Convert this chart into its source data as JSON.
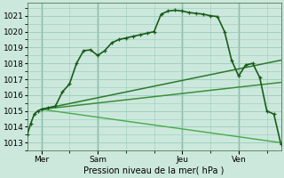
{
  "bg_color": "#cce8dc",
  "grid_color": "#99ccbb",
  "ylabel": "Pression niveau de la mer( hPa )",
  "ylim": [
    1012.5,
    1021.8
  ],
  "yticks": [
    1013,
    1014,
    1015,
    1016,
    1017,
    1018,
    1019,
    1020,
    1021
  ],
  "xlim": [
    0,
    72
  ],
  "day_positions": [
    4,
    20,
    44,
    60
  ],
  "day_labels": [
    "Mer",
    "Sam",
    "Jeu",
    "Ven"
  ],
  "vlines": [
    4,
    20,
    44,
    60
  ],
  "main_line": {
    "x": [
      0,
      1,
      2,
      3,
      4,
      6,
      8,
      10,
      12,
      14,
      16,
      18,
      20,
      22,
      24,
      26,
      28,
      30,
      32,
      34,
      36,
      38,
      40,
      42,
      44,
      46,
      48,
      50,
      52,
      54,
      56,
      58,
      60,
      62,
      64,
      66,
      68,
      70,
      72
    ],
    "y": [
      1013.5,
      1014.2,
      1014.8,
      1015.0,
      1015.1,
      1015.2,
      1015.3,
      1016.2,
      1016.7,
      1018.0,
      1018.8,
      1018.85,
      1018.5,
      1018.8,
      1019.3,
      1019.5,
      1019.6,
      1019.7,
      1019.8,
      1019.9,
      1020.0,
      1021.1,
      1021.3,
      1021.35,
      1021.3,
      1021.2,
      1021.15,
      1021.1,
      1021.0,
      1020.95,
      1020.0,
      1018.2,
      1017.2,
      1017.9,
      1018.0,
      1017.1,
      1015.0,
      1014.8,
      1012.9
    ],
    "color": "#1a5c1a",
    "lw": 1.2,
    "ms": 3.0
  },
  "fan_line1": {
    "x": [
      4,
      72
    ],
    "y": [
      1015.1,
      1018.2
    ],
    "color": "#2a7a2a",
    "lw": 1.1
  },
  "fan_line2": {
    "x": [
      4,
      72
    ],
    "y": [
      1015.1,
      1016.8
    ],
    "color": "#3a8f3a",
    "lw": 1.1
  },
  "fan_line3": {
    "x": [
      4,
      72
    ],
    "y": [
      1015.1,
      1013.0
    ],
    "color": "#4aaa4a",
    "lw": 1.0
  }
}
